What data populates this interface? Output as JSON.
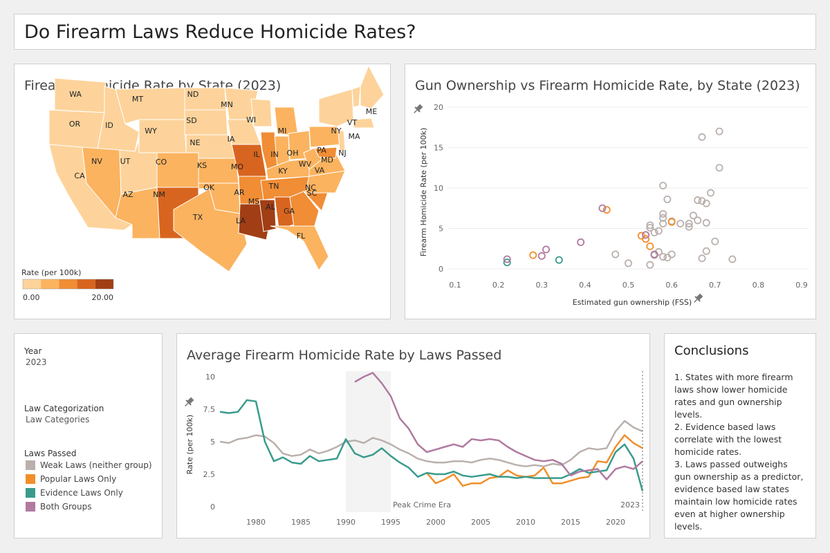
{
  "dashboard_title": "Do Firearm Laws Reduce Homicide Rates?",
  "map_panel": {
    "title": "Firearm Homicide Rate by State (2023)",
    "legend_title": "Rate (per 100k)",
    "legend_min": "0.00",
    "legend_max": "20.00",
    "colors": [
      "#fdd39b",
      "#fbb35f",
      "#f08d35",
      "#d8651f",
      "#a13e15"
    ]
  },
  "scatter_panel": {
    "title": "Gun Ownership vs Firearm Homicide Rate, by State (2023)"
  },
  "controls": {
    "year_label": "Year",
    "year_value": "2023",
    "law_cat_label": "Law Categorization",
    "law_cat_value": "Law Categories",
    "laws_passed_label": "Laws Passed",
    "legend": [
      {
        "name": "Weak Laws (neither group)",
        "color": "#bab0ac"
      },
      {
        "name": "Popular Laws Only",
        "color": "#f28e2b"
      },
      {
        "name": "Evidence Laws Only",
        "color": "#3a9b8d"
      },
      {
        "name": "Both Groups",
        "color": "#b07aa1"
      }
    ]
  },
  "line_panel": {
    "title": "Average Firearm Homicide Rate by Laws Passed"
  },
  "conclusions": {
    "title": "Conclusions",
    "points": [
      "1. States with more firearm laws show lower homicide rates and gun ownership levels.",
      "2. Evidence based laws correlate with the lowest homicide rates.",
      "3. Laws passed outweighs gun ownership as a predictor, evidence based law states maintain low homicide rates even at higher ownership levels."
    ]
  },
  "chart_data": [
    {
      "type": "heatmap",
      "subtype": "choropleth-map",
      "title": "Firearm Homicide Rate by State (2023)",
      "legend": "Rate (per 100k)",
      "range": [
        0,
        20
      ],
      "states": [
        {
          "abbr": "WA",
          "rate": 3.4
        },
        {
          "abbr": "OR",
          "rate": 2.6
        },
        {
          "abbr": "CA",
          "rate": 3.5
        },
        {
          "abbr": "ID",
          "rate": 1.6
        },
        {
          "abbr": "NV",
          "rate": 6.5
        },
        {
          "abbr": "UT",
          "rate": 1.6
        },
        {
          "abbr": "AZ",
          "rate": 6.0
        },
        {
          "abbr": "MT",
          "rate": 2.8
        },
        {
          "abbr": "WY",
          "rate": 2.6
        },
        {
          "abbr": "CO",
          "rate": 5.8
        },
        {
          "abbr": "NM",
          "rate": 12.4
        },
        {
          "abbr": "ND",
          "rate": 2.4
        },
        {
          "abbr": "SD",
          "rate": 2.6
        },
        {
          "abbr": "NE",
          "rate": 2.8
        },
        {
          "abbr": "KS",
          "rate": 5.5
        },
        {
          "abbr": "OK",
          "rate": 6.2
        },
        {
          "abbr": "TX",
          "rate": 6.0
        },
        {
          "abbr": "MN",
          "rate": 2.8
        },
        {
          "abbr": "IA",
          "rate": 2.6
        },
        {
          "abbr": "MO",
          "rate": 12.3
        },
        {
          "abbr": "AR",
          "rate": 10.5
        },
        {
          "abbr": "LA",
          "rate": 17.3
        },
        {
          "abbr": "WI",
          "rate": 3.8
        },
        {
          "abbr": "IL",
          "rate": 8.2
        },
        {
          "abbr": "MI",
          "rate": 7.0
        },
        {
          "abbr": "IN",
          "rate": 7.5
        },
        {
          "abbr": "OH",
          "rate": 6.6
        },
        {
          "abbr": "KY",
          "rate": 6.8
        },
        {
          "abbr": "TN",
          "rate": 9.5
        },
        {
          "abbr": "MS",
          "rate": 16.5
        },
        {
          "abbr": "AL",
          "rate": 12.6
        },
        {
          "abbr": "GA",
          "rate": 8.9
        },
        {
          "abbr": "FL",
          "rate": 5.2
        },
        {
          "abbr": "SC",
          "rate": 9.4
        },
        {
          "abbr": "NC",
          "rate": 6.4
        },
        {
          "abbr": "VA",
          "rate": 5.6
        },
        {
          "abbr": "WV",
          "rate": 4.3
        },
        {
          "abbr": "PA",
          "rate": 5.4
        },
        {
          "abbr": "NY",
          "rate": 2.8
        },
        {
          "abbr": "MD",
          "rate": 8.7
        },
        {
          "abbr": "NJ",
          "rate": 2.5
        },
        {
          "abbr": "VT",
          "rate": 2.0
        },
        {
          "abbr": "MA",
          "rate": 1.6
        },
        {
          "abbr": "ME",
          "rate": 1.2
        }
      ]
    },
    {
      "type": "scatter",
      "title": "Gun Ownership vs Firearm Homicide Rate, by State (2023)",
      "xlabel": "Estimated gun ownership (FSS)",
      "ylabel": "Firearm Homicide Rate (per 100k)",
      "xlim": [
        0.1,
        0.9
      ],
      "ylim": [
        0,
        20
      ],
      "xticks": [
        0.1,
        0.2,
        0.3,
        0.4,
        0.5,
        0.6,
        0.7,
        0.8,
        0.9
      ],
      "yticks": [
        0,
        5,
        10,
        15,
        20
      ],
      "grid": true,
      "series": [
        {
          "name": "Weak Laws (neither group)",
          "color": "#bab0ac",
          "points": [
            [
              0.67,
              16.3
            ],
            [
              0.71,
              17.0
            ],
            [
              0.71,
              12.5
            ],
            [
              0.58,
              10.3
            ],
            [
              0.69,
              9.4
            ],
            [
              0.59,
              8.6
            ],
            [
              0.66,
              8.5
            ],
            [
              0.67,
              8.4
            ],
            [
              0.68,
              8.1
            ],
            [
              0.58,
              6.3
            ],
            [
              0.6,
              5.9
            ],
            [
              0.65,
              6.6
            ],
            [
              0.66,
              6.0
            ],
            [
              0.55,
              5.4
            ],
            [
              0.55,
              5.1
            ],
            [
              0.56,
              4.5
            ],
            [
              0.58,
              5.6
            ],
            [
              0.62,
              5.6
            ],
            [
              0.64,
              5.6
            ],
            [
              0.68,
              5.7
            ],
            [
              0.57,
              4.7
            ],
            [
              0.7,
              3.4
            ],
            [
              0.57,
              2.1
            ],
            [
              0.58,
              1.5
            ],
            [
              0.59,
              1.4
            ],
            [
              0.6,
              1.8
            ],
            [
              0.56,
              1.7
            ],
            [
              0.55,
              0.5
            ],
            [
              0.47,
              1.8
            ],
            [
              0.5,
              0.7
            ],
            [
              0.67,
              1.3
            ],
            [
              0.68,
              2.2
            ],
            [
              0.74,
              1.2
            ],
            [
              0.64,
              5.2
            ],
            [
              0.58,
              6.8
            ]
          ]
        },
        {
          "name": "Popular Laws Only",
          "color": "#f28e2b",
          "points": [
            [
              0.45,
              7.3
            ],
            [
              0.53,
              4.1
            ],
            [
              0.54,
              3.7
            ],
            [
              0.55,
              2.8
            ],
            [
              0.6,
              5.8
            ],
            [
              0.28,
              1.7
            ]
          ]
        },
        {
          "name": "Evidence Laws Only",
          "color": "#3a9b8d",
          "points": [
            [
              0.22,
              0.8
            ],
            [
              0.34,
              1.1
            ]
          ]
        },
        {
          "name": "Both Groups",
          "color": "#b07aa1",
          "points": [
            [
              0.44,
              7.5
            ],
            [
              0.39,
              3.3
            ],
            [
              0.31,
              2.4
            ],
            [
              0.3,
              1.6
            ],
            [
              0.22,
              1.2
            ],
            [
              0.54,
              4.2
            ],
            [
              0.56,
              1.8
            ]
          ]
        }
      ]
    },
    {
      "type": "line",
      "title": "Average Firearm Homicide Rate by Laws Passed",
      "ylabel": "Rate (per 100k)",
      "xlim": [
        1976,
        2023
      ],
      "ylim": [
        0,
        10
      ],
      "xticks": [
        1980,
        1985,
        1990,
        1995,
        2000,
        2005,
        2010,
        2015,
        2020
      ],
      "yticks": [
        0,
        2.5,
        5,
        7.5,
        10
      ],
      "yticklabels": [
        "0",
        "2.5",
        "5",
        "7.5",
        "10"
      ],
      "annotations": [
        {
          "label": "Peak Crime Era",
          "x_start": 1990,
          "x_end": 1995
        },
        {
          "label": "2023",
          "x": 2023
        }
      ],
      "series": [
        {
          "name": "Weak Laws (neither group)",
          "color": "#bab0ac",
          "x": [
            1976,
            1977,
            1978,
            1979,
            1980,
            1981,
            1982,
            1983,
            1984,
            1985,
            1986,
            1987,
            1988,
            1989,
            1990,
            1991,
            1992,
            1993,
            1994,
            1995,
            1996,
            1997,
            1998,
            1999,
            2000,
            2001,
            2002,
            2003,
            2004,
            2005,
            2006,
            2007,
            2008,
            2009,
            2010,
            2011,
            2012,
            2013,
            2014,
            2015,
            2016,
            2017,
            2018,
            2019,
            2020,
            2021,
            2022,
            2023
          ],
          "values": [
            5.0,
            4.9,
            5.2,
            5.3,
            5.5,
            5.4,
            4.9,
            4.1,
            3.9,
            4.0,
            4.4,
            4.1,
            4.3,
            4.6,
            5.0,
            5.1,
            4.9,
            5.3,
            5.1,
            4.8,
            4.4,
            4.1,
            3.7,
            3.5,
            3.4,
            3.4,
            3.5,
            3.5,
            3.4,
            3.6,
            3.7,
            3.6,
            3.4,
            3.2,
            3.1,
            3.2,
            3.1,
            3.3,
            3.2,
            3.6,
            4.2,
            4.5,
            4.4,
            4.5,
            5.8,
            6.6,
            6.1,
            5.8
          ]
        },
        {
          "name": "Popular Laws Only",
          "color": "#f28e2b",
          "x": [
            1999,
            2000,
            2001,
            2002,
            2003,
            2004,
            2005,
            2006,
            2007,
            2008,
            2009,
            2010,
            2011,
            2012,
            2013,
            2014,
            2015,
            2016,
            2017,
            2018,
            2019,
            2020,
            2021,
            2022,
            2023
          ],
          "values": [
            2.6,
            1.8,
            2.1,
            2.5,
            1.6,
            1.8,
            1.8,
            2.2,
            2.3,
            2.8,
            2.4,
            2.3,
            2.4,
            3.0,
            1.8,
            1.8,
            2.0,
            2.2,
            2.3,
            3.5,
            3.4,
            4.6,
            5.5,
            4.9,
            4.5
          ]
        },
        {
          "name": "Evidence Laws Only",
          "color": "#3a9b8d",
          "x": [
            1976,
            1977,
            1978,
            1979,
            1980,
            1981,
            1982,
            1983,
            1984,
            1985,
            1986,
            1987,
            1988,
            1989,
            1990,
            1991,
            1992,
            1993,
            1994,
            1995,
            1996,
            1997,
            1998,
            1999,
            2000,
            2001,
            2002,
            2003,
            2004,
            2005,
            2006,
            2007,
            2008,
            2009,
            2010,
            2011,
            2012,
            2013,
            2014,
            2015,
            2016,
            2017,
            2018,
            2019,
            2020,
            2021,
            2022,
            2023
          ],
          "values": [
            7.3,
            7.2,
            7.3,
            8.2,
            8.1,
            5.0,
            3.5,
            3.8,
            3.4,
            3.3,
            3.9,
            3.5,
            3.6,
            3.7,
            5.2,
            4.1,
            3.8,
            4.0,
            4.5,
            3.9,
            3.4,
            3.0,
            2.3,
            2.6,
            2.5,
            2.5,
            2.7,
            2.4,
            2.3,
            2.4,
            2.5,
            2.3,
            2.3,
            2.2,
            2.3,
            2.2,
            2.2,
            2.2,
            2.2,
            2.5,
            2.9,
            2.6,
            2.7,
            2.8,
            4.2,
            4.8,
            3.7,
            1.2
          ]
        },
        {
          "name": "Both Groups",
          "color": "#b07aa1",
          "x": [
            1991,
            1992,
            1993,
            1994,
            1995,
            1996,
            1997,
            1998,
            1999,
            2000,
            2001,
            2002,
            2003,
            2004,
            2005,
            2006,
            2007,
            2008,
            2009,
            2010,
            2011,
            2012,
            2013,
            2014,
            2015,
            2016,
            2017,
            2018,
            2019,
            2020,
            2021,
            2022,
            2023
          ],
          "values": [
            9.6,
            10.0,
            10.3,
            9.5,
            8.5,
            6.8,
            6.0,
            4.8,
            4.2,
            4.4,
            4.6,
            4.8,
            4.6,
            5.2,
            5.1,
            5.2,
            5.1,
            4.6,
            4.2,
            3.9,
            3.6,
            3.5,
            3.6,
            3.3,
            2.4,
            2.7,
            2.8,
            2.9,
            2.1,
            2.9,
            3.1,
            2.9,
            3.5
          ]
        }
      ]
    }
  ]
}
